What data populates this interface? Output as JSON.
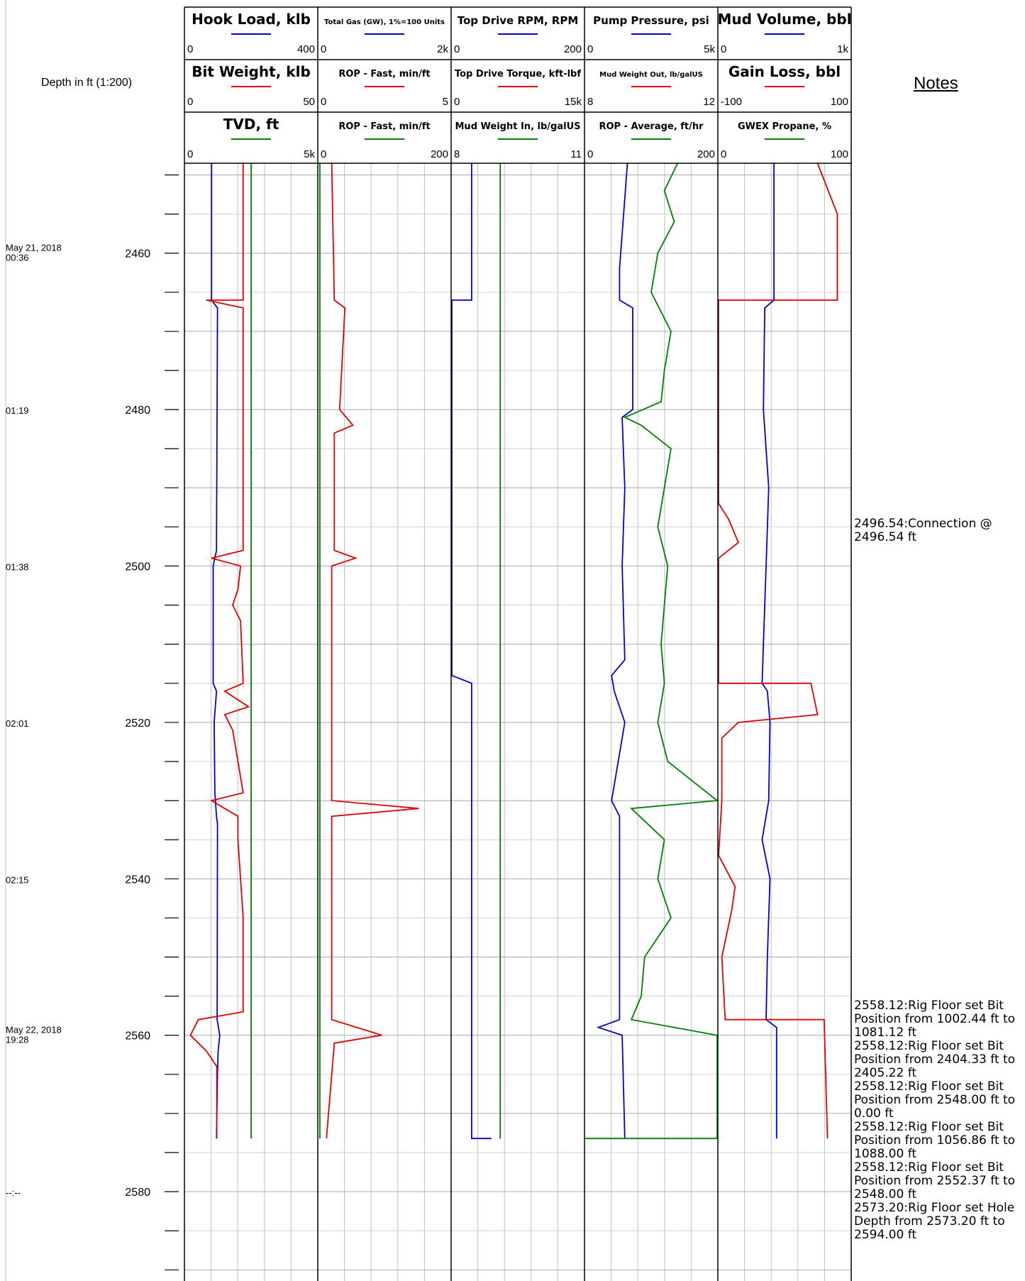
{
  "depth_header": "Depth in ft (1:200)",
  "notes_header": "Notes",
  "colors": {
    "blue": "#0000d0",
    "red": "#e00000",
    "green": "#007f00",
    "grid": "#c0c0c0"
  },
  "tracks": [
    {
      "headers": [
        {
          "title": "Hook Load, klb",
          "min": "0",
          "max": "400",
          "color": "#0000d0",
          "size": "lg"
        },
        {
          "title": "Bit Weight, klb",
          "min": "0",
          "max": "50",
          "color": "#e00000",
          "size": "lg"
        },
        {
          "title": "TVD, ft",
          "min": "0",
          "max": "5k",
          "color": "#007f00",
          "size": "lg"
        }
      ]
    },
    {
      "headers": [
        {
          "title": "Total Gas (GW), 1%=100 Units",
          "min": "0",
          "max": "2k",
          "color": "#0000d0",
          "size": "xs"
        },
        {
          "title": "ROP - Fast, min/ft",
          "min": "0",
          "max": "5",
          "color": "#e00000",
          "size": "sm"
        },
        {
          "title": "ROP - Fast, min/ft",
          "min": "0",
          "max": "200",
          "color": "#007f00",
          "size": "sm"
        }
      ]
    },
    {
      "headers": [
        {
          "title": "Top Drive RPM, RPM",
          "min": "0",
          "max": "200",
          "color": "#0000d0",
          "size": "md"
        },
        {
          "title": "Top Drive Torque, kft-lbf",
          "min": "0",
          "max": "15k",
          "color": "#e00000",
          "size": "sm"
        },
        {
          "title": "Mud Weight In, lb/galUS",
          "min": "8",
          "max": "11",
          "color": "#007f00",
          "size": "sm"
        }
      ]
    },
    {
      "headers": [
        {
          "title": "Pump Pressure, psi",
          "min": "0",
          "max": "5k",
          "color": "#0000d0",
          "size": "md"
        },
        {
          "title": "Mud Weight Out, lb/galUS",
          "min": "8",
          "max": "12",
          "color": "#e00000",
          "size": "xs"
        },
        {
          "title": "ROP - Average, ft/hr",
          "min": "0",
          "max": "200",
          "color": "#007f00",
          "size": "sm"
        }
      ]
    },
    {
      "headers": [
        {
          "title": "Mud Volume, bbl",
          "min": "0",
          "max": "1k",
          "color": "#0000d0",
          "size": "lg"
        },
        {
          "title": "Gain Loss, bbl",
          "min": "-100",
          "max": "100",
          "color": "#e00000",
          "size": "lg"
        },
        {
          "title": "GWEX Propane, %",
          "min": "0",
          "max": "100",
          "color": "#007f00",
          "size": "sm"
        }
      ]
    }
  ],
  "depth_labels": [
    {
      "depth": 2460,
      "label": "2460"
    },
    {
      "depth": 2480,
      "label": "2480"
    },
    {
      "depth": 2500,
      "label": "2500"
    },
    {
      "depth": 2520,
      "label": "2520"
    },
    {
      "depth": 2540,
      "label": "2540"
    },
    {
      "depth": 2560,
      "label": "2560"
    },
    {
      "depth": 2580,
      "label": "2580"
    }
  ],
  "time_labels": [
    {
      "depth": 2460,
      "lines": [
        "May 21, 2018",
        "00:36"
      ]
    },
    {
      "depth": 2480,
      "lines": [
        "01:19"
      ]
    },
    {
      "depth": 2500,
      "lines": [
        "01:38"
      ]
    },
    {
      "depth": 2520,
      "lines": [
        "02:01"
      ]
    },
    {
      "depth": 2540,
      "lines": [
        "02:15"
      ]
    },
    {
      "depth": 2560,
      "lines": [
        "May 22, 2018",
        "19:28"
      ]
    },
    {
      "depth": 2580,
      "lines": [
        "--:--"
      ]
    }
  ],
  "notes": [
    {
      "depth": 2496.54,
      "label": "2496.54",
      "text": "Connection @ 2496.54 ft"
    },
    {
      "depth": 2558.12,
      "label": "2558.12",
      "text": "Rig Floor set Bit Position from 1002.44 ft to 1081.12 ft"
    },
    {
      "depth": 2558.12,
      "label": "2558.12",
      "text": "Rig Floor set Bit Position from 2404.33 ft to 2405.22 ft"
    },
    {
      "depth": 2558.12,
      "label": "2558.12",
      "text": "Rig Floor set Bit Position from 2548.00 ft to 0.00 ft"
    },
    {
      "depth": 2558.12,
      "label": "2558.12",
      "text": "Rig Floor set Bit Position from 1056.86 ft to 1088.00 ft"
    },
    {
      "depth": 2558.12,
      "label": "2558.12",
      "text": "Rig Floor set Bit Position from 2552.37 ft to 2548.00 ft"
    },
    {
      "depth": 2573.2,
      "label": "2573.20",
      "text": "Rig Floor set Hole Depth from 2573.20 ft to 2594.00 ft"
    }
  ],
  "chart_data": {
    "type": "line",
    "title": "",
    "ylabel": "Depth in ft (1:200)",
    "depth_range": [
      2448.5,
      2590
    ],
    "series": [
      {
        "name": "Hook Load, klb",
        "track": 0,
        "scale": [
          0,
          400
        ],
        "color": "#0000d0",
        "points": [
          [
            2448.5,
            80
          ],
          [
            2466,
            80
          ],
          [
            2467,
            98
          ],
          [
            2498,
            95
          ],
          [
            2500,
            85
          ],
          [
            2515,
            85
          ],
          [
            2516,
            95
          ],
          [
            2520,
            88
          ],
          [
            2529,
            90
          ],
          [
            2532,
            95
          ],
          [
            2533,
            98
          ],
          [
            2558,
            97
          ],
          [
            2560,
            105
          ],
          [
            2562,
            100
          ],
          [
            2565,
            98
          ],
          [
            2573.2,
            95
          ]
        ]
      },
      {
        "name": "Bit Weight, klb",
        "track": 0,
        "scale": [
          0,
          50
        ],
        "color": "#e00000",
        "points": [
          [
            2448.5,
            22
          ],
          [
            2466,
            22
          ],
          [
            2466,
            8
          ],
          [
            2467,
            22
          ],
          [
            2498,
            22
          ],
          [
            2499,
            10
          ],
          [
            2500,
            21
          ],
          [
            2503,
            20
          ],
          [
            2505,
            18
          ],
          [
            2507,
            21
          ],
          [
            2515,
            22
          ],
          [
            2516,
            15
          ],
          [
            2518,
            24
          ],
          [
            2519,
            15
          ],
          [
            2521,
            18
          ],
          [
            2529,
            22
          ],
          [
            2530,
            10
          ],
          [
            2531,
            15
          ],
          [
            2532,
            20
          ],
          [
            2535,
            20
          ],
          [
            2545,
            22
          ],
          [
            2557,
            22
          ],
          [
            2558,
            5
          ],
          [
            2560,
            2
          ],
          [
            2562,
            8
          ],
          [
            2564,
            12
          ],
          [
            2573.2,
            12
          ]
        ]
      },
      {
        "name": "TVD, ft",
        "track": 0,
        "scale": [
          0,
          5000
        ],
        "color": "#007f00",
        "points": [
          [
            2448.5,
            2500
          ],
          [
            2573.2,
            2500
          ]
        ]
      },
      {
        "name": "ROP - Fast, min/ft",
        "track": 1,
        "scale": [
          0,
          5
        ],
        "color": "#e00000",
        "points": [
          [
            2448.5,
            0.5
          ],
          [
            2466,
            0.6
          ],
          [
            2467,
            1.0
          ],
          [
            2480,
            0.8
          ],
          [
            2482,
            1.3
          ],
          [
            2483,
            0.6
          ],
          [
            2498,
            0.6
          ],
          [
            2499,
            1.4
          ],
          [
            2500,
            0.5
          ],
          [
            2530,
            0.5
          ],
          [
            2531,
            3.8
          ],
          [
            2532,
            0.5
          ],
          [
            2558,
            0.5
          ],
          [
            2560,
            2.4
          ],
          [
            2561,
            0.6
          ],
          [
            2573.2,
            0.3
          ]
        ]
      },
      {
        "name": "ROP - Fast, min/ft (green)",
        "track": 1,
        "scale": [
          0,
          200
        ],
        "color": "#007f00",
        "points": [
          [
            2448.5,
            2
          ],
          [
            2573.2,
            2
          ]
        ]
      },
      {
        "name": "Top Drive RPM, RPM",
        "track": 2,
        "scale": [
          0,
          200
        ],
        "color": "#0000d0",
        "points": [
          [
            2448.5,
            30
          ],
          [
            2466,
            30
          ],
          [
            2466,
            0
          ],
          [
            2514,
            0
          ],
          [
            2515,
            30
          ],
          [
            2573.2,
            30
          ],
          [
            2573.2,
            60
          ]
        ]
      },
      {
        "name": "Mud Weight In, lb/galUS",
        "track": 2,
        "scale": [
          8,
          11
        ],
        "color": "#007f00",
        "points": [
          [
            2448.5,
            9.1
          ],
          [
            2573.2,
            9.1
          ]
        ]
      },
      {
        "name": "Pump Pressure, psi",
        "track": 3,
        "scale": [
          0,
          5000
        ],
        "color": "#0000d0",
        "points": [
          [
            2448.5,
            1600
          ],
          [
            2462,
            1300
          ],
          [
            2466,
            1300
          ],
          [
            2467,
            1800
          ],
          [
            2480,
            1800
          ],
          [
            2481,
            1400
          ],
          [
            2490,
            1500
          ],
          [
            2500,
            1400
          ],
          [
            2512,
            1500
          ],
          [
            2514,
            1000
          ],
          [
            2516,
            1100
          ],
          [
            2520,
            1500
          ],
          [
            2530,
            1000
          ],
          [
            2532,
            1300
          ],
          [
            2558,
            1300
          ],
          [
            2559,
            500
          ],
          [
            2560,
            1400
          ],
          [
            2573.2,
            1500
          ]
        ]
      },
      {
        "name": "ROP - Average, ft/hr",
        "track": 3,
        "scale": [
          0,
          200
        ],
        "color": "#007f00",
        "points": [
          [
            2448.5,
            140
          ],
          [
            2452,
            120
          ],
          [
            2456,
            135
          ],
          [
            2460,
            110
          ],
          [
            2465,
            100
          ],
          [
            2470,
            130
          ],
          [
            2475,
            120
          ],
          [
            2479,
            115
          ],
          [
            2481,
            60
          ],
          [
            2482,
            85
          ],
          [
            2485,
            130
          ],
          [
            2490,
            120
          ],
          [
            2495,
            110
          ],
          [
            2500,
            125
          ],
          [
            2505,
            120
          ],
          [
            2510,
            115
          ],
          [
            2515,
            120
          ],
          [
            2520,
            110
          ],
          [
            2525,
            125
          ],
          [
            2530,
            200
          ],
          [
            2531,
            70
          ],
          [
            2535,
            120
          ],
          [
            2540,
            110
          ],
          [
            2545,
            130
          ],
          [
            2550,
            90
          ],
          [
            2555,
            85
          ],
          [
            2558,
            70
          ],
          [
            2560,
            200
          ],
          [
            2573.2,
            200
          ],
          [
            2573.2,
            0
          ]
        ]
      },
      {
        "name": "Mud Volume, bbl",
        "track": 4,
        "scale": [
          0,
          1000
        ],
        "color": "#0000d0",
        "points": [
          [
            2448.5,
            420
          ],
          [
            2466,
            420
          ],
          [
            2467,
            350
          ],
          [
            2480,
            340
          ],
          [
            2490,
            380
          ],
          [
            2500,
            360
          ],
          [
            2510,
            340
          ],
          [
            2515,
            330
          ],
          [
            2516,
            370
          ],
          [
            2520,
            390
          ],
          [
            2530,
            380
          ],
          [
            2535,
            330
          ],
          [
            2540,
            390
          ],
          [
            2550,
            370
          ],
          [
            2558,
            360
          ],
          [
            2559,
            440
          ],
          [
            2573.2,
            440
          ]
        ]
      },
      {
        "name": "Gain Loss, bbl",
        "track": 4,
        "scale": [
          -100,
          100
        ],
        "color": "#e00000",
        "points": [
          [
            2448.5,
            50
          ],
          [
            2455,
            80
          ],
          [
            2466,
            80
          ],
          [
            2466,
            -100
          ],
          [
            2492,
            -100
          ],
          [
            2494,
            -85
          ],
          [
            2497,
            -70
          ],
          [
            2499,
            -100
          ],
          [
            2515,
            -100
          ],
          [
            2515,
            40
          ],
          [
            2519,
            50
          ],
          [
            2520,
            -70
          ],
          [
            2522,
            -95
          ],
          [
            2530,
            -95
          ],
          [
            2537,
            -100
          ],
          [
            2541,
            -75
          ],
          [
            2544,
            -80
          ],
          [
            2550,
            -95
          ],
          [
            2558,
            -90
          ],
          [
            2558,
            60
          ],
          [
            2573.2,
            65
          ]
        ]
      }
    ]
  }
}
